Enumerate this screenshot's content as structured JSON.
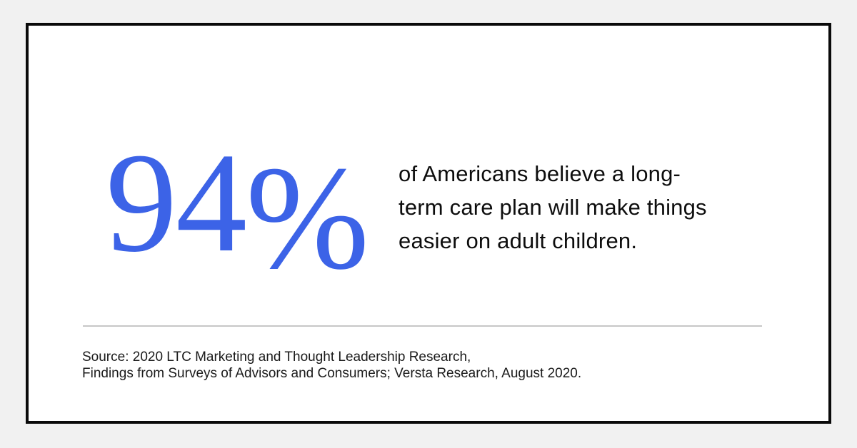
{
  "page": {
    "background_color": "#F1F1F1"
  },
  "card": {
    "background_color": "#FFFFFF",
    "border_color": "#0A0A0A"
  },
  "stat": {
    "value": "94",
    "percent_sign": "%",
    "color": "#3C63E7"
  },
  "statement": {
    "full_text": "of Americans believe a long-term care plan will make things easier on adult children.",
    "lines": [
      "of Americans believe a long-",
      "term care plan will make things",
      "easier on adult children."
    ]
  },
  "source": {
    "full_text": "Source: 2020 LTC Marketing and Thought Leadership Research, Findings from Surveys of Advisors and Consumers; Versta Research, August 2020.",
    "lines": [
      "Source: 2020 LTC Marketing and Thought Leadership Research,",
      "Findings from Surveys of Advisors and Consumers; Versta Research, August 2020."
    ]
  }
}
